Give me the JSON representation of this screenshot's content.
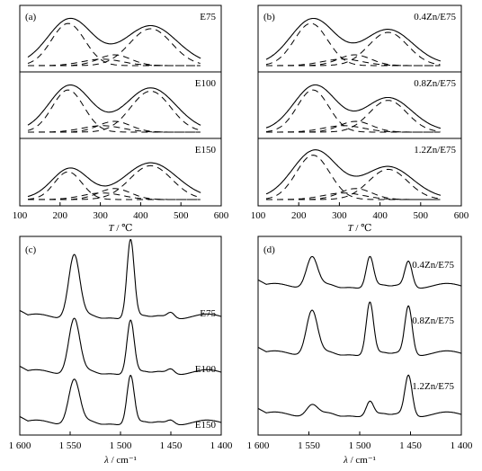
{
  "chart_data": [
    {
      "type": "line",
      "panel_label": "(a)",
      "x_range": [
        100,
        600
      ],
      "x_ticks": [
        "100",
        "200",
        "300",
        "400",
        "500",
        "600"
      ],
      "x_axis_italic": "T",
      "x_axis_unit": " / ℃",
      "grid": false,
      "legend": "none",
      "subpanels": [
        {
          "label": "E75",
          "peaks": [
            {
              "center": 225,
              "height": 0.85,
              "width": 55
            },
            {
              "center": 425,
              "height": 0.72,
              "width": 65
            }
          ]
        },
        {
          "label": "E100",
          "peaks": [
            {
              "center": 225,
              "height": 0.85,
              "width": 52
            },
            {
              "center": 425,
              "height": 0.8,
              "width": 62
            }
          ]
        },
        {
          "label": "E150",
          "peaks": [
            {
              "center": 225,
              "height": 0.55,
              "width": 45
            },
            {
              "center": 425,
              "height": 0.65,
              "width": 65
            }
          ]
        }
      ]
    },
    {
      "type": "line",
      "panel_label": "(b)",
      "x_range": [
        100,
        600
      ],
      "x_ticks": [
        "100",
        "200",
        "300",
        "400",
        "500",
        "600"
      ],
      "x_axis_italic": "T",
      "x_axis_unit": " / ℃",
      "grid": false,
      "legend": "none",
      "subpanels": [
        {
          "label": "0.4Zn/E75",
          "peaks": [
            {
              "center": 235,
              "height": 0.85,
              "width": 55
            },
            {
              "center": 420,
              "height": 0.65,
              "width": 60
            }
          ]
        },
        {
          "label": "0.8Zn/E75",
          "peaks": [
            {
              "center": 240,
              "height": 0.85,
              "width": 52
            },
            {
              "center": 420,
              "height": 0.62,
              "width": 58
            }
          ]
        },
        {
          "label": "1.2Zn/E75",
          "peaks": [
            {
              "center": 240,
              "height": 0.88,
              "width": 55
            },
            {
              "center": 420,
              "height": 0.58,
              "width": 60
            }
          ]
        }
      ]
    },
    {
      "type": "line",
      "panel_label": "(c)",
      "x_range": [
        1600,
        1400
      ],
      "x_ticks": [
        "1 600",
        "1 550",
        "1 500",
        "1 450",
        "1 400"
      ],
      "x_axis_italic": "λ",
      "x_axis_unit": " / cm⁻¹",
      "grid": false,
      "legend": "none",
      "series": [
        {
          "label": "E75",
          "peaks": [
            {
              "center": 1545,
              "height": 0.78
            },
            {
              "center": 1490,
              "height": 0.97
            },
            {
              "center": 1450,
              "height": 0.07
            }
          ]
        },
        {
          "label": "E100",
          "peaks": [
            {
              "center": 1545,
              "height": 0.68
            },
            {
              "center": 1490,
              "height": 0.66
            },
            {
              "center": 1450,
              "height": 0.06
            }
          ]
        },
        {
          "label": "E150",
          "peaks": [
            {
              "center": 1545,
              "height": 0.55
            },
            {
              "center": 1490,
              "height": 0.6
            },
            {
              "center": 1450,
              "height": 0.05
            }
          ]
        }
      ]
    },
    {
      "type": "line",
      "panel_label": "(d)",
      "x_range": [
        1600,
        1400
      ],
      "x_ticks": [
        "1 600",
        "1 550",
        "1 500",
        "1 450",
        "1 400"
      ],
      "x_axis_italic": "λ",
      "x_axis_unit": " / cm⁻¹",
      "grid": false,
      "legend": "none",
      "series": [
        {
          "label": "0.4Zn/E75",
          "peaks": [
            {
              "center": 1545,
              "height": 0.38
            },
            {
              "center": 1490,
              "height": 0.38
            },
            {
              "center": 1450,
              "height": 0.32
            }
          ]
        },
        {
          "label": "0.8Zn/E75",
          "peaks": [
            {
              "center": 1545,
              "height": 0.55
            },
            {
              "center": 1490,
              "height": 0.65
            },
            {
              "center": 1450,
              "height": 0.6
            }
          ]
        },
        {
          "label": "1.2Zn/E75",
          "peaks": [
            {
              "center": 1545,
              "height": 0.14
            },
            {
              "center": 1490,
              "height": 0.18
            },
            {
              "center": 1450,
              "height": 0.5
            }
          ]
        }
      ]
    }
  ]
}
